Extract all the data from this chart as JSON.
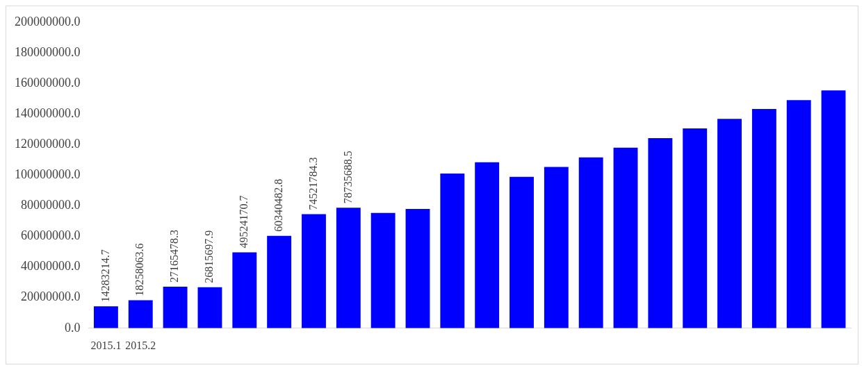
{
  "chart_data": {
    "type": "bar",
    "categories": [
      "2015.1",
      "2015.2",
      null,
      null,
      null,
      null,
      null,
      null,
      null,
      null,
      null,
      null,
      null,
      null,
      null,
      null,
      null,
      null,
      null,
      null,
      null,
      null
    ],
    "values": [
      14283214.7,
      18258063.6,
      27165478.3,
      26815697.9,
      49524170.7,
      60340482.8,
      74521784.3,
      78735688.5,
      75300000,
      77900000,
      101000000,
      108400000,
      98900000,
      105300000,
      111600000,
      117900000,
      124200000,
      130500000,
      136800000,
      143200000,
      149000000,
      155300000
    ],
    "value_labels": [
      "14283214.7",
      "18258063.6",
      "27165478.3",
      "26815697.9",
      "49524170.7",
      "60340482.8",
      "74521784.3",
      "78735688.5",
      null,
      null,
      null,
      null,
      null,
      null,
      null,
      null,
      null,
      null,
      null,
      null,
      null,
      null
    ],
    "color": "#0000ff",
    "ylim": [
      0,
      200000000
    ],
    "yticks": [
      {
        "value": 0,
        "label": "0.0"
      },
      {
        "value": 20000000,
        "label": "20000000.0"
      },
      {
        "value": 40000000,
        "label": "40000000.0"
      },
      {
        "value": 60000000,
        "label": "60000000.0"
      },
      {
        "value": 80000000,
        "label": "80000000.0"
      },
      {
        "value": 100000000,
        "label": "100000000.0"
      },
      {
        "value": 120000000,
        "label": "120000000.0"
      },
      {
        "value": 140000000,
        "label": "140000000.0"
      },
      {
        "value": 160000000,
        "label": "160000000.0"
      },
      {
        "value": 180000000,
        "label": "180000000.0"
      },
      {
        "value": 200000000,
        "label": "200000000.0"
      }
    ],
    "grid": false,
    "legend": false
  }
}
